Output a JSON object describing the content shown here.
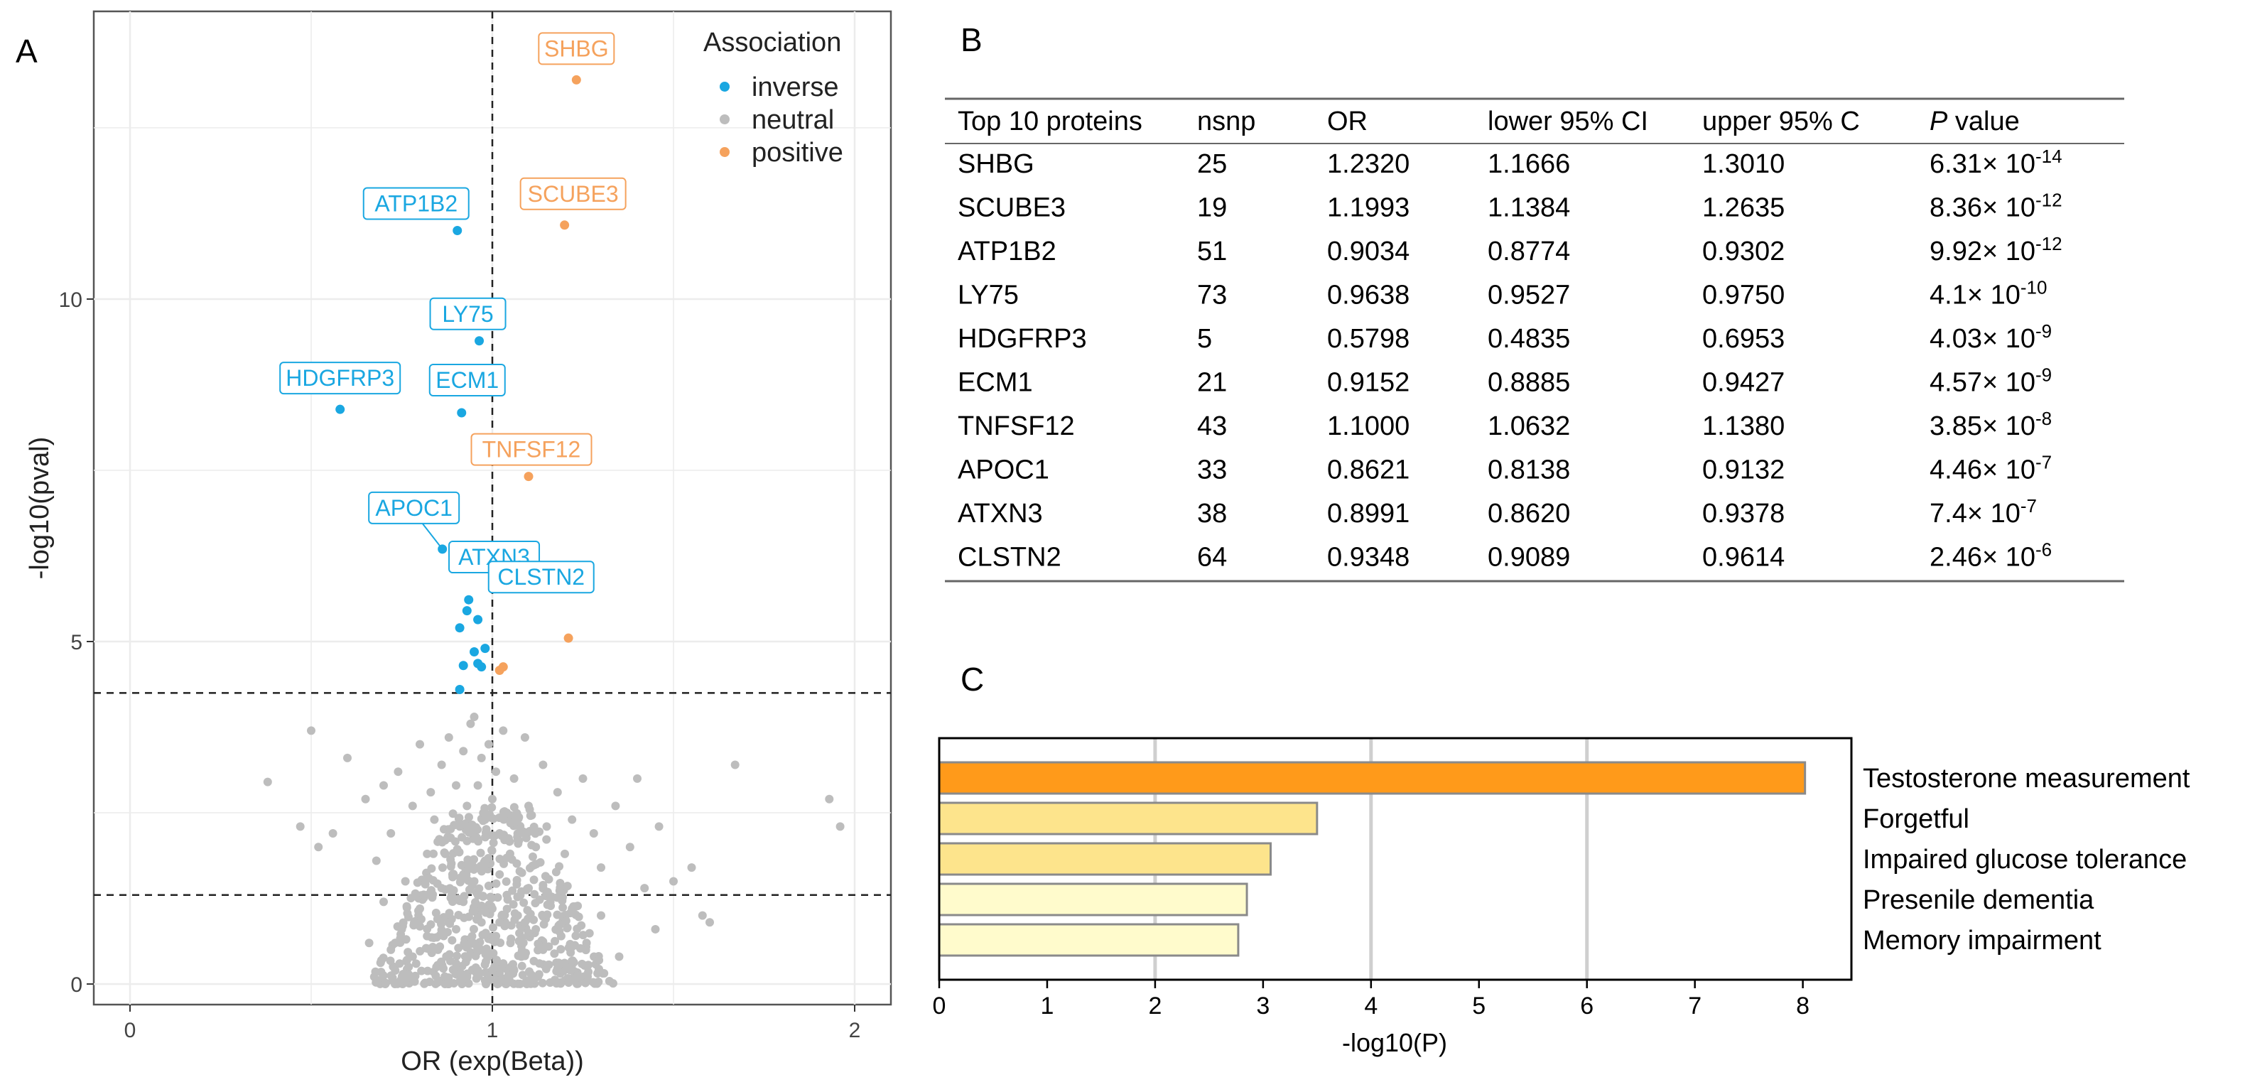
{
  "panel_labels": {
    "a": "A",
    "b": "B",
    "c": "C"
  },
  "colors": {
    "inverse": "#1aa7e1",
    "neutral": "#bdbdbd",
    "positive": "#f5a25d",
    "bar_strong": "#ff9a1a",
    "bar_mid": "#fde48c",
    "bar_light": "#fffbcc"
  },
  "chart_data": [
    {
      "type": "scatter",
      "panel": "A",
      "title": "",
      "xlabel": "OR (exp(Beta))",
      "ylabel": "-log10(pval)",
      "xlim": [
        -0.1,
        2.1
      ],
      "ylim": [
        -0.3,
        14.2
      ],
      "xticks": [
        "0",
        "1",
        "2"
      ],
      "yticks": [
        "0",
        "5",
        "10"
      ],
      "grid": true,
      "thresholds": {
        "vline_x": 1,
        "hlines_y": [
          1.3,
          4.25
        ]
      },
      "legend": {
        "title": "Association",
        "position": "top-right",
        "entries": [
          "inverse",
          "neutral",
          "positive"
        ]
      },
      "labeled_points": [
        {
          "label": "SHBG",
          "x": 1.232,
          "y": 13.2,
          "group": "positive"
        },
        {
          "label": "SCUBE3",
          "x": 1.1993,
          "y": 11.08,
          "group": "positive"
        },
        {
          "label": "ATP1B2",
          "x": 0.9034,
          "y": 11.0,
          "group": "inverse"
        },
        {
          "label": "LY75",
          "x": 0.9638,
          "y": 9.39,
          "group": "inverse"
        },
        {
          "label": "HDGFRP3",
          "x": 0.5798,
          "y": 8.39,
          "group": "inverse"
        },
        {
          "label": "ECM1",
          "x": 0.9152,
          "y": 8.34,
          "group": "inverse"
        },
        {
          "label": "TNFSF12",
          "x": 1.1,
          "y": 7.41,
          "group": "positive"
        },
        {
          "label": "APOC1",
          "x": 0.8621,
          "y": 6.35,
          "group": "inverse"
        },
        {
          "label": "ATXN3",
          "x": 0.8991,
          "y": 6.13,
          "group": "inverse"
        },
        {
          "label": "CLSTN2",
          "x": 0.9348,
          "y": 5.61,
          "group": "inverse"
        }
      ],
      "other_significant_points": [
        {
          "x": 0.93,
          "y": 5.45,
          "group": "inverse"
        },
        {
          "x": 0.96,
          "y": 5.32,
          "group": "inverse"
        },
        {
          "x": 0.91,
          "y": 5.2,
          "group": "inverse"
        },
        {
          "x": 0.98,
          "y": 4.9,
          "group": "inverse"
        },
        {
          "x": 0.95,
          "y": 4.85,
          "group": "inverse"
        },
        {
          "x": 0.92,
          "y": 4.65,
          "group": "inverse"
        },
        {
          "x": 0.96,
          "y": 4.68,
          "group": "inverse"
        },
        {
          "x": 0.97,
          "y": 4.63,
          "group": "inverse"
        },
        {
          "x": 0.91,
          "y": 4.3,
          "group": "inverse"
        },
        {
          "x": 1.21,
          "y": 5.05,
          "group": "positive"
        },
        {
          "x": 1.03,
          "y": 4.63,
          "group": "positive"
        },
        {
          "x": 1.02,
          "y": 4.58,
          "group": "positive"
        }
      ],
      "neutral_points": [
        {
          "x": 0.38,
          "y": 2.95
        },
        {
          "x": 0.5,
          "y": 3.7
        },
        {
          "x": 0.47,
          "y": 2.3
        },
        {
          "x": 0.52,
          "y": 2.0
        },
        {
          "x": 0.6,
          "y": 3.3
        },
        {
          "x": 0.56,
          "y": 2.2
        },
        {
          "x": 0.65,
          "y": 2.7
        },
        {
          "x": 0.7,
          "y": 2.9
        },
        {
          "x": 0.68,
          "y": 1.8
        },
        {
          "x": 0.74,
          "y": 3.1
        },
        {
          "x": 0.72,
          "y": 2.2
        },
        {
          "x": 0.78,
          "y": 2.6
        },
        {
          "x": 0.8,
          "y": 3.5
        },
        {
          "x": 0.76,
          "y": 1.5
        },
        {
          "x": 0.83,
          "y": 2.8
        },
        {
          "x": 0.82,
          "y": 1.9
        },
        {
          "x": 0.86,
          "y": 3.2
        },
        {
          "x": 0.84,
          "y": 2.4
        },
        {
          "x": 0.88,
          "y": 3.6
        },
        {
          "x": 0.87,
          "y": 2.1
        },
        {
          "x": 0.9,
          "y": 2.9
        },
        {
          "x": 0.89,
          "y": 1.6
        },
        {
          "x": 0.92,
          "y": 3.4
        },
        {
          "x": 0.91,
          "y": 2.3
        },
        {
          "x": 0.94,
          "y": 3.8
        },
        {
          "x": 0.93,
          "y": 2.6
        },
        {
          "x": 0.95,
          "y": 3.9
        },
        {
          "x": 0.96,
          "y": 2.9
        },
        {
          "x": 0.97,
          "y": 3.3
        },
        {
          "x": 0.98,
          "y": 2.4
        },
        {
          "x": 0.99,
          "y": 3.5
        },
        {
          "x": 1.0,
          "y": 2.7
        },
        {
          "x": 1.01,
          "y": 3.1
        },
        {
          "x": 1.02,
          "y": 2.2
        },
        {
          "x": 1.03,
          "y": 3.7
        },
        {
          "x": 1.04,
          "y": 2.5
        },
        {
          "x": 1.06,
          "y": 3.0
        },
        {
          "x": 1.07,
          "y": 2.1
        },
        {
          "x": 1.09,
          "y": 3.6
        },
        {
          "x": 1.1,
          "y": 2.6
        },
        {
          "x": 1.12,
          "y": 2.0
        },
        {
          "x": 1.14,
          "y": 3.2
        },
        {
          "x": 1.15,
          "y": 2.3
        },
        {
          "x": 1.18,
          "y": 2.8
        },
        {
          "x": 1.2,
          "y": 1.9
        },
        {
          "x": 1.22,
          "y": 2.4
        },
        {
          "x": 1.25,
          "y": 3.0
        },
        {
          "x": 1.28,
          "y": 2.2
        },
        {
          "x": 1.3,
          "y": 1.7
        },
        {
          "x": 1.34,
          "y": 2.6
        },
        {
          "x": 1.38,
          "y": 2.0
        },
        {
          "x": 1.4,
          "y": 3.0
        },
        {
          "x": 1.42,
          "y": 1.4
        },
        {
          "x": 1.46,
          "y": 2.3
        },
        {
          "x": 1.5,
          "y": 1.5
        },
        {
          "x": 1.55,
          "y": 1.7
        },
        {
          "x": 1.58,
          "y": 1.0
        },
        {
          "x": 1.6,
          "y": 0.9
        },
        {
          "x": 1.67,
          "y": 3.2
        },
        {
          "x": 1.93,
          "y": 2.7
        },
        {
          "x": 1.96,
          "y": 2.3
        },
        {
          "x": 0.7,
          "y": 1.2
        },
        {
          "x": 0.75,
          "y": 0.8
        },
        {
          "x": 0.8,
          "y": 1.1
        },
        {
          "x": 0.85,
          "y": 0.5
        },
        {
          "x": 0.88,
          "y": 0.9
        },
        {
          "x": 0.9,
          "y": 0.3
        },
        {
          "x": 0.92,
          "y": 1.2
        },
        {
          "x": 0.94,
          "y": 0.6
        },
        {
          "x": 0.95,
          "y": 1.5
        },
        {
          "x": 0.96,
          "y": 0.2
        },
        {
          "x": 0.97,
          "y": 0.9
        },
        {
          "x": 0.98,
          "y": 1.8
        },
        {
          "x": 0.99,
          "y": 0.4
        },
        {
          "x": 1.0,
          "y": 1.1
        },
        {
          "x": 1.01,
          "y": 0.7
        },
        {
          "x": 1.02,
          "y": 1.6
        },
        {
          "x": 1.03,
          "y": 0.3
        },
        {
          "x": 1.04,
          "y": 1.3
        },
        {
          "x": 1.05,
          "y": 0.6
        },
        {
          "x": 1.07,
          "y": 1.0
        },
        {
          "x": 1.08,
          "y": 0.4
        },
        {
          "x": 1.1,
          "y": 1.4
        },
        {
          "x": 1.12,
          "y": 0.8
        },
        {
          "x": 1.14,
          "y": 0.5
        },
        {
          "x": 1.16,
          "y": 1.2
        },
        {
          "x": 1.19,
          "y": 0.7
        },
        {
          "x": 1.22,
          "y": 1.1
        },
        {
          "x": 1.26,
          "y": 0.6
        },
        {
          "x": 1.3,
          "y": 1.0
        },
        {
          "x": 0.78,
          "y": 0.4
        },
        {
          "x": 0.82,
          "y": 0.7
        },
        {
          "x": 0.86,
          "y": 1.4
        },
        {
          "x": 0.9,
          "y": 0.8
        },
        {
          "x": 0.93,
          "y": 0.1
        },
        {
          "x": 0.97,
          "y": 0.5
        },
        {
          "x": 1.0,
          "y": 0.2
        },
        {
          "x": 1.02,
          "y": 0.9
        },
        {
          "x": 1.06,
          "y": 0.2
        },
        {
          "x": 1.09,
          "y": 0.9
        },
        {
          "x": 1.13,
          "y": 0.3
        },
        {
          "x": 0.66,
          "y": 0.6
        },
        {
          "x": 0.72,
          "y": 0.5
        },
        {
          "x": 1.35,
          "y": 0.4
        },
        {
          "x": 1.45,
          "y": 0.8
        }
      ]
    },
    {
      "type": "table",
      "panel": "B",
      "columns": [
        "Top 10 proteins",
        "nsnp",
        "OR",
        "lower 95% CI",
        "upper 95% C",
        "P value"
      ],
      "rows": [
        {
          "protein": "SHBG",
          "nsnp": "25",
          "or": "1.2320",
          "lower": "1.1666",
          "upper": "1.3010",
          "p_base": "6.31× 10",
          "p_exp": "-14"
        },
        {
          "protein": "SCUBE3",
          "nsnp": "19",
          "or": "1.1993",
          "lower": "1.1384",
          "upper": "1.2635",
          "p_base": "8.36× 10",
          "p_exp": "-12"
        },
        {
          "protein": "ATP1B2",
          "nsnp": "51",
          "or": "0.9034",
          "lower": "0.8774",
          "upper": "0.9302",
          "p_base": "9.92× 10",
          "p_exp": "-12"
        },
        {
          "protein": "LY75",
          "nsnp": "73",
          "or": "0.9638",
          "lower": "0.9527",
          "upper": "0.9750",
          "p_base": "4.1× 10",
          "p_exp": "-10"
        },
        {
          "protein": "HDGFRP3",
          "nsnp": "5",
          "or": "0.5798",
          "lower": "0.4835",
          "upper": "0.6953",
          "p_base": "4.03× 10",
          "p_exp": "-9"
        },
        {
          "protein": "ECM1",
          "nsnp": "21",
          "or": "0.9152",
          "lower": "0.8885",
          "upper": "0.9427",
          "p_base": "4.57× 10",
          "p_exp": "-9"
        },
        {
          "protein": "TNFSF12",
          "nsnp": "43",
          "or": "1.1000",
          "lower": "1.0632",
          "upper": "1.1380",
          "p_base": "3.85× 10",
          "p_exp": "-8"
        },
        {
          "protein": "APOC1",
          "nsnp": "33",
          "or": "0.8621",
          "lower": "0.8138",
          "upper": "0.9132",
          "p_base": "4.46× 10",
          "p_exp": "-7"
        },
        {
          "protein": "ATXN3",
          "nsnp": "38",
          "or": "0.8991",
          "lower": "0.8620",
          "upper": "0.9378",
          "p_base": "7.4× 10",
          "p_exp": "-7"
        },
        {
          "protein": "CLSTN2",
          "nsnp": "64",
          "or": "0.9348",
          "lower": "0.9089",
          "upper": "0.9614",
          "p_base": "2.46× 10",
          "p_exp": "-6"
        }
      ]
    },
    {
      "type": "bar",
      "panel": "C",
      "orientation": "horizontal",
      "xlabel": "-log10(P)",
      "xlim": [
        0,
        8.45
      ],
      "xticks": [
        "0",
        "1",
        "2",
        "3",
        "4",
        "5",
        "6",
        "7",
        "8"
      ],
      "grid": true,
      "categories": [
        "Testosterone measurement",
        "Forgetful",
        "Impaired glucose tolerance",
        "Presenile dementia",
        "Memory impairment"
      ],
      "values": [
        8.02,
        3.5,
        3.07,
        2.85,
        2.77
      ],
      "fills": [
        "#ff9a1a",
        "#fde48c",
        "#fde48c",
        "#fffbcc",
        "#fffbcc"
      ]
    }
  ]
}
